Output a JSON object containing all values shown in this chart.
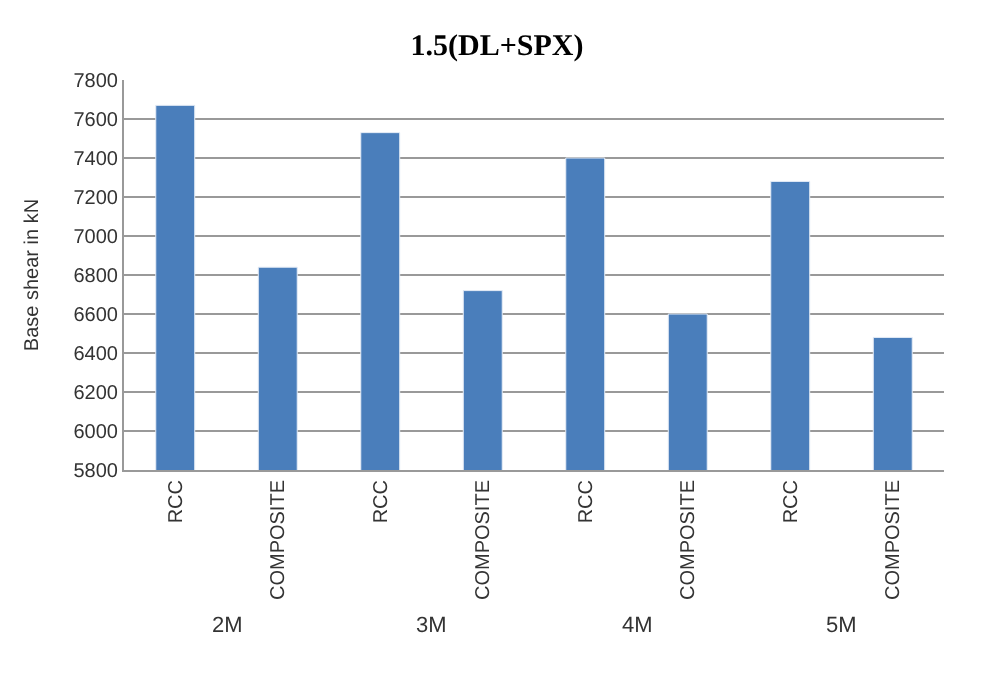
{
  "chart_data": {
    "type": "bar",
    "title": "1.5(DL+SPX)",
    "ylabel": "Base shear in kN",
    "categories": [
      "RCC",
      "COMPOSITE",
      "RCC",
      "COMPOSITE",
      "RCC",
      "COMPOSITE",
      "RCC",
      "COMPOSITE"
    ],
    "values": [
      7670,
      6840,
      7530,
      6720,
      7400,
      6600,
      7280,
      6480
    ],
    "color": "#4a7ebb",
    "ylim": [
      5800,
      7800
    ],
    "yticks": [
      5800,
      6000,
      6200,
      6400,
      6600,
      6800,
      7000,
      7200,
      7400,
      7600,
      7800
    ],
    "grid": "y",
    "legend": false,
    "annotations": [
      "2M",
      "3M",
      "4M",
      "5M"
    ]
  }
}
